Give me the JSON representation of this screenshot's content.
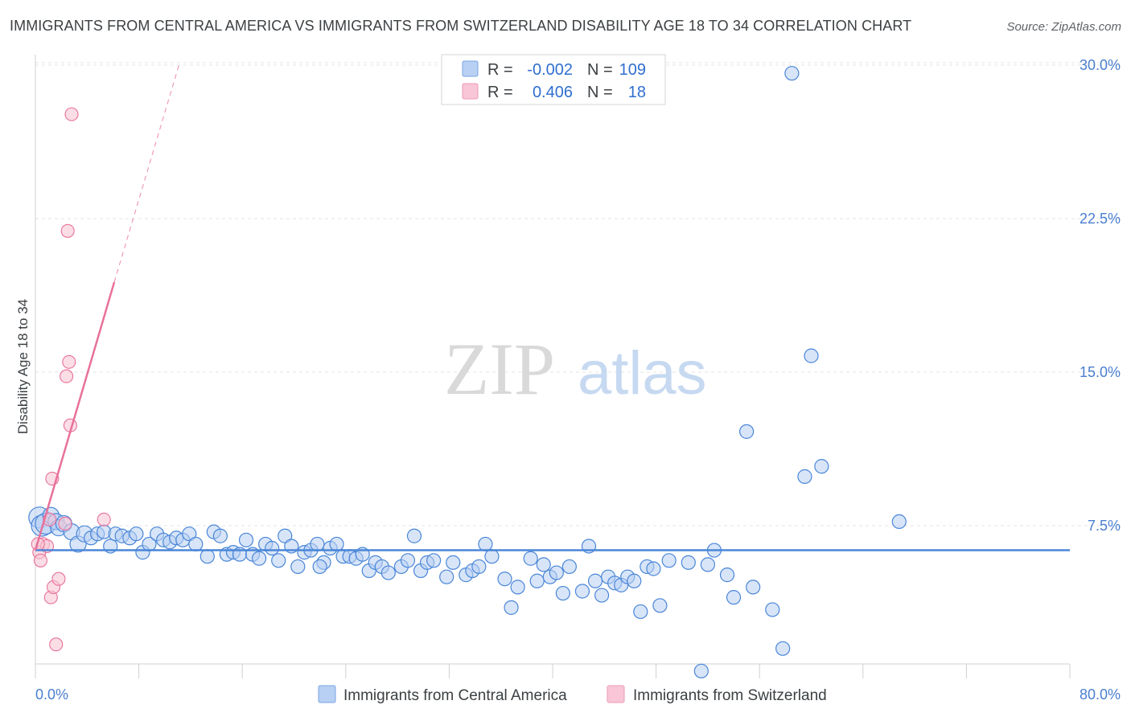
{
  "title": "IMMIGRANTS FROM CENTRAL AMERICA VS IMMIGRANTS FROM SWITZERLAND DISABILITY AGE 18 TO 34 CORRELATION CHART",
  "source": "Source: ZipAtlas.com",
  "watermark": {
    "zip": "ZIP",
    "atlas": "atlas"
  },
  "colors": {
    "blue": "#4a86d8",
    "blue_fill": "#b8d0f3",
    "pink": "#e8719a",
    "pink_fill": "#f8c6d6",
    "axis_text": "#4a7fd0"
  },
  "legend": {
    "r_label": "R =",
    "n_label": "N =",
    "rows": [
      {
        "r": "-0.002",
        "n": "109"
      },
      {
        "r": "0.406",
        "n": "18"
      }
    ]
  },
  "chart_data": {
    "type": "scatter",
    "title": "IMMIGRANTS FROM CENTRAL AMERICA VS IMMIGRANTS FROM SWITZERLAND DISABILITY AGE 18 TO 34 CORRELATION CHART",
    "xlabel": "",
    "ylabel": "Disability Age 18 to 34",
    "xlim": [
      0,
      80
    ],
    "ylim": [
      0,
      31
    ],
    "x_tick_labels": [
      "0.0%",
      "80.0%"
    ],
    "y_ticks": [
      7.5,
      15.0,
      22.5,
      30.0
    ],
    "y_tick_labels": [
      "7.5%",
      "15.0%",
      "22.5%",
      "30.0%"
    ],
    "grid": true,
    "series": [
      {
        "name": "Immigrants from Central America",
        "color": "#4a86d8",
        "trend": {
          "x": [
            0,
            80
          ],
          "y": [
            6.3,
            6.3
          ]
        },
        "points": [
          [
            0.3,
            7.9
          ],
          [
            0.5,
            7.5
          ],
          [
            0.8,
            7.6
          ],
          [
            1.2,
            8.0
          ],
          [
            1.6,
            7.7
          ],
          [
            1.8,
            7.4
          ],
          [
            2.2,
            7.6
          ],
          [
            2.8,
            7.2
          ],
          [
            3.3,
            6.6
          ],
          [
            3.8,
            7.1
          ],
          [
            4.3,
            6.9
          ],
          [
            4.8,
            7.1
          ],
          [
            5.3,
            7.2
          ],
          [
            5.8,
            6.5
          ],
          [
            6.2,
            7.1
          ],
          [
            6.7,
            7.0
          ],
          [
            7.3,
            6.9
          ],
          [
            7.8,
            7.1
          ],
          [
            8.3,
            6.2
          ],
          [
            8.8,
            6.6
          ],
          [
            9.4,
            7.1
          ],
          [
            9.9,
            6.8
          ],
          [
            10.4,
            6.7
          ],
          [
            10.9,
            6.9
          ],
          [
            11.4,
            6.8
          ],
          [
            11.9,
            7.1
          ],
          [
            12.4,
            6.6
          ],
          [
            13.3,
            6.0
          ],
          [
            13.8,
            7.2
          ],
          [
            14.3,
            7.0
          ],
          [
            14.8,
            6.1
          ],
          [
            15.3,
            6.2
          ],
          [
            15.8,
            6.1
          ],
          [
            16.3,
            6.8
          ],
          [
            16.8,
            6.1
          ],
          [
            17.3,
            5.9
          ],
          [
            17.8,
            6.6
          ],
          [
            18.3,
            6.4
          ],
          [
            18.8,
            5.8
          ],
          [
            19.3,
            7.0
          ],
          [
            19.8,
            6.5
          ],
          [
            20.3,
            5.5
          ],
          [
            20.8,
            6.2
          ],
          [
            21.3,
            6.3
          ],
          [
            21.8,
            6.6
          ],
          [
            22.3,
            5.7
          ],
          [
            22.8,
            6.4
          ],
          [
            23.3,
            6.6
          ],
          [
            23.8,
            6.0
          ],
          [
            24.3,
            6.0
          ],
          [
            24.8,
            5.9
          ],
          [
            25.3,
            6.1
          ],
          [
            25.8,
            5.3
          ],
          [
            26.3,
            5.7
          ],
          [
            26.8,
            5.5
          ],
          [
            27.3,
            5.2
          ],
          [
            28.3,
            5.5
          ],
          [
            28.8,
            5.8
          ],
          [
            29.3,
            7.0
          ],
          [
            29.8,
            5.3
          ],
          [
            30.3,
            5.7
          ],
          [
            30.8,
            5.8
          ],
          [
            31.8,
            5.0
          ],
          [
            32.3,
            5.7
          ],
          [
            33.3,
            5.1
          ],
          [
            33.8,
            5.3
          ],
          [
            34.3,
            5.5
          ],
          [
            34.8,
            6.6
          ],
          [
            35.3,
            6.0
          ],
          [
            36.3,
            4.9
          ],
          [
            36.8,
            3.5
          ],
          [
            37.3,
            4.5
          ],
          [
            38.3,
            5.9
          ],
          [
            38.8,
            4.8
          ],
          [
            39.3,
            5.6
          ],
          [
            39.8,
            5.0
          ],
          [
            40.3,
            5.2
          ],
          [
            40.8,
            4.2
          ],
          [
            41.3,
            5.5
          ],
          [
            42.3,
            4.3
          ],
          [
            42.8,
            6.5
          ],
          [
            43.3,
            4.8
          ],
          [
            43.8,
            4.1
          ],
          [
            44.3,
            5.0
          ],
          [
            44.8,
            4.7
          ],
          [
            45.3,
            4.6
          ],
          [
            45.8,
            5.0
          ],
          [
            46.3,
            4.8
          ],
          [
            46.8,
            3.3
          ],
          [
            47.3,
            5.5
          ],
          [
            47.8,
            5.4
          ],
          [
            48.3,
            3.6
          ],
          [
            49.0,
            5.8
          ],
          [
            50.5,
            5.7
          ],
          [
            52.0,
            5.6
          ],
          [
            52.5,
            6.3
          ],
          [
            53.5,
            5.1
          ],
          [
            54.0,
            4.0
          ],
          [
            55.0,
            12.1
          ],
          [
            55.5,
            4.5
          ],
          [
            57.0,
            3.4
          ],
          [
            57.8,
            1.5
          ],
          [
            58.5,
            29.6
          ],
          [
            60.0,
            15.8
          ],
          [
            59.5,
            9.9
          ],
          [
            60.8,
            10.4
          ],
          [
            66.8,
            7.7
          ],
          [
            51.5,
            0.4
          ],
          [
            22.0,
            5.5
          ]
        ]
      },
      {
        "name": "Immigrants from Switzerland",
        "color": "#e8719a",
        "trend": {
          "x": [
            0,
            6.1
          ],
          "y": [
            6.3,
            19.4
          ],
          "dashed_to": [
            11.1,
            30.0
          ]
        },
        "points": [
          [
            0.3,
            6.2
          ],
          [
            0.4,
            5.8
          ],
          [
            0.6,
            6.6
          ],
          [
            0.9,
            6.5
          ],
          [
            1.1,
            7.8
          ],
          [
            1.2,
            4.0
          ],
          [
            1.3,
            9.8
          ],
          [
            1.4,
            4.5
          ],
          [
            1.6,
            1.7
          ],
          [
            1.8,
            4.9
          ],
          [
            2.3,
            7.6
          ],
          [
            2.4,
            14.8
          ],
          [
            2.5,
            21.9
          ],
          [
            2.6,
            15.5
          ],
          [
            2.7,
            12.4
          ],
          [
            2.8,
            27.6
          ],
          [
            5.3,
            7.8
          ],
          [
            0.2,
            6.6
          ]
        ]
      }
    ]
  },
  "bottom_legend": [
    {
      "label": "Immigrants from Central America"
    },
    {
      "label": "Immigrants from Switzerland"
    }
  ]
}
